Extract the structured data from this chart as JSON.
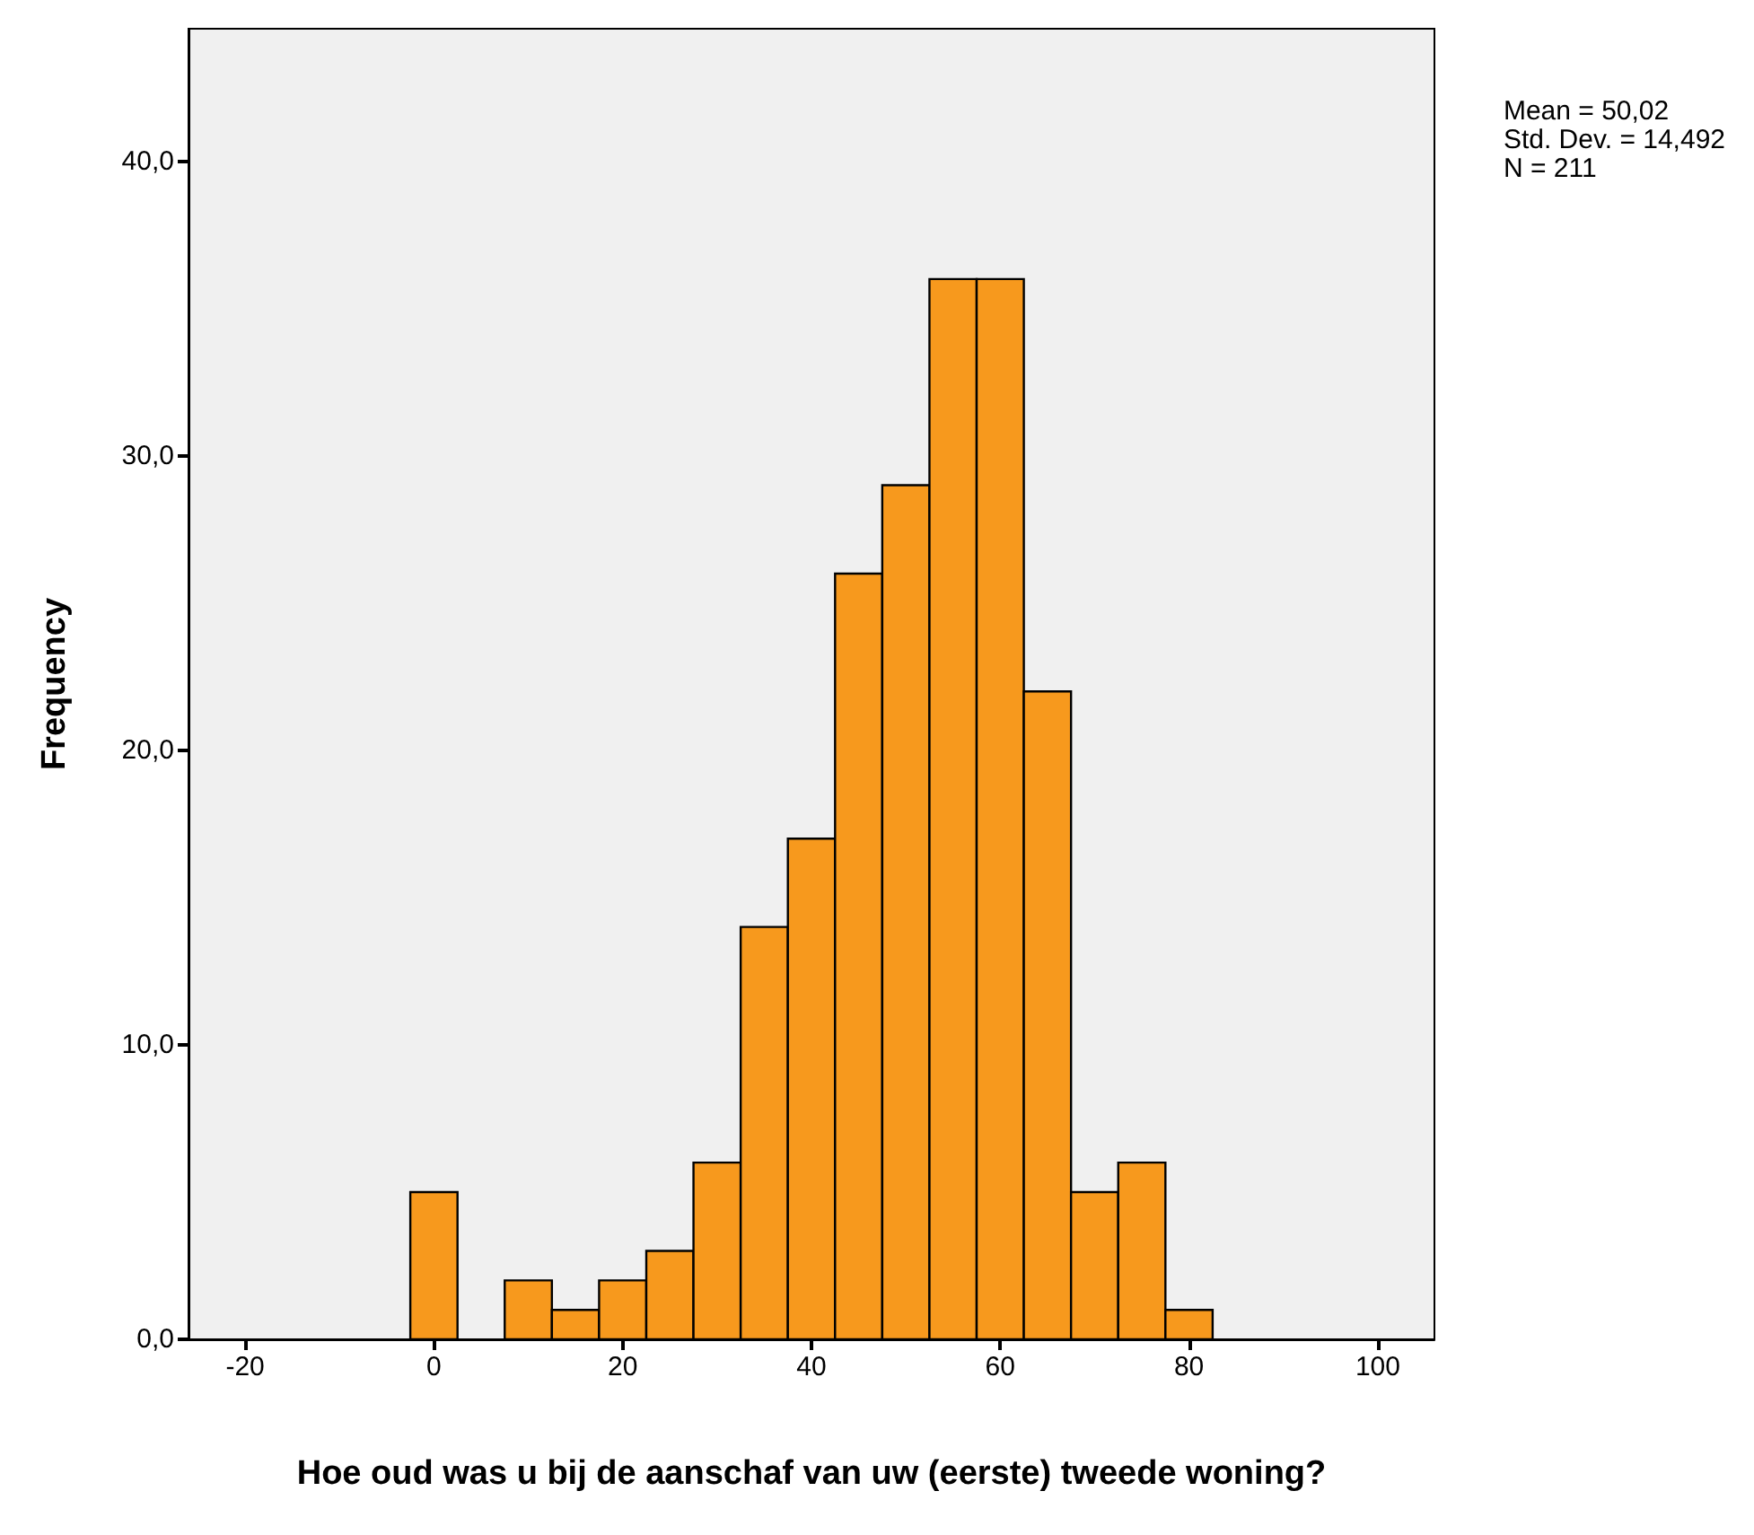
{
  "chart_data": {
    "type": "histogram",
    "xlabel": "Hoe oud was u bij de aanschaf van uw (eerste) tweede woning?",
    "ylabel": "Frequency",
    "annotations": [
      "Mean = 50,02",
      "Std. Dev. = 14,492",
      "N = 211"
    ],
    "bins": [
      -2.5,
      2.5,
      7.5,
      12.5,
      17.5,
      22.5,
      27.5,
      32.5,
      37.5,
      42.5,
      47.5,
      52.5,
      57.5,
      62.5,
      67.5,
      72.5,
      77.5,
      82.5
    ],
    "values": [
      5,
      0,
      2,
      1,
      2,
      3,
      6,
      14,
      17,
      26,
      29,
      36,
      36,
      22,
      5,
      6,
      1
    ],
    "color": "#f7991d",
    "xlim": [
      -26,
      106
    ],
    "xticks": [
      -20,
      0,
      20,
      40,
      60,
      80,
      100
    ],
    "ylim": [
      0,
      44.5
    ],
    "yticks": [
      {
        "value": 0,
        "label": "0,0"
      },
      {
        "value": 10,
        "label": "10,0"
      },
      {
        "value": 20,
        "label": "20,0"
      },
      {
        "value": 30,
        "label": "30,0"
      },
      {
        "value": 40,
        "label": "40,0"
      }
    ],
    "grid": false
  }
}
